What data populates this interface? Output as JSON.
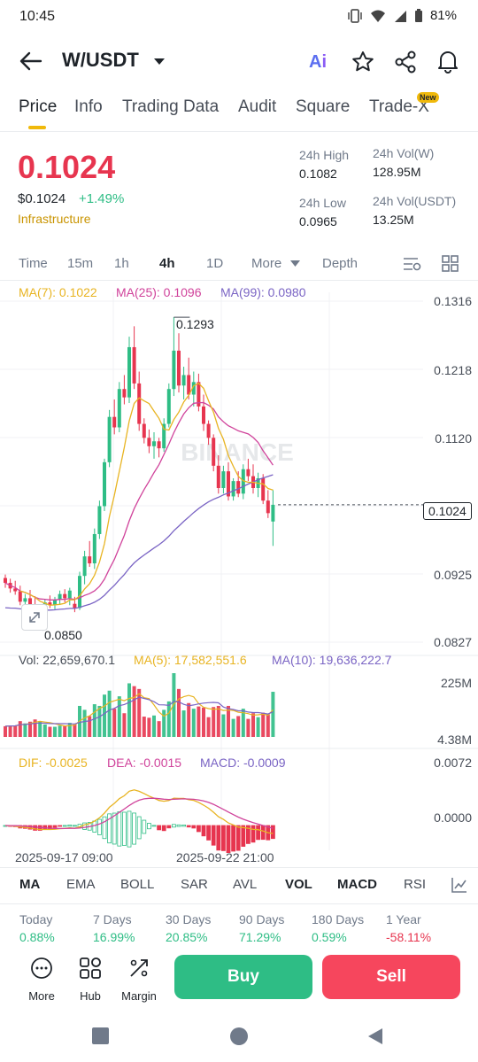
{
  "status_bar": {
    "time": "10:45",
    "battery": "81%"
  },
  "header": {
    "pair": "W/USDT"
  },
  "tabs": [
    {
      "label": "Price",
      "active": true
    },
    {
      "label": "Info"
    },
    {
      "label": "Trading Data"
    },
    {
      "label": "Audit"
    },
    {
      "label": "Square"
    },
    {
      "label": "Trade-X",
      "badge": "New"
    }
  ],
  "ticker": {
    "last_price": "0.1024",
    "usd_price": "$0.1024",
    "change": "+1.49%",
    "category": "Infrastructure",
    "high_label": "24h High",
    "high_value": "0.1082",
    "vol_w_label": "24h Vol(W)",
    "vol_w_value": "128.95M",
    "low_label": "24h Low",
    "low_value": "0.0965",
    "vol_usdt_label": "24h Vol(USDT)",
    "vol_usdt_value": "13.25M"
  },
  "timeframes": [
    {
      "label": "Time"
    },
    {
      "label": "15m"
    },
    {
      "label": "1h"
    },
    {
      "label": "4h",
      "active": true
    },
    {
      "label": "1D"
    },
    {
      "label": "More"
    },
    {
      "label": "Depth"
    }
  ],
  "ma_legend": {
    "ma7": "MA(7): 0.1022",
    "ma25": "MA(25): 0.1096",
    "ma99": "MA(99): 0.0980"
  },
  "price_axis": [
    "0.1316",
    "0.1218",
    "0.1120",
    "0.1022",
    "0.0925",
    "0.0827"
  ],
  "current_price_tag": "0.1024",
  "high_marker": "0.1293",
  "low_marker": "0.0850",
  "watermark": "BINANCE",
  "volume_legend": {
    "vol": "Vol: 22,659,670.1",
    "ma5": "MA(5): 17,582,551.6",
    "ma10": "MA(10): 19,636,222.7"
  },
  "volume_axis": [
    "225M",
    "4.38M"
  ],
  "macd_legend": {
    "dif": "DIF: -0.0025",
    "dea": "DEA: -0.0015",
    "macd": "MACD: -0.0009"
  },
  "macd_axis": [
    "0.0072",
    "0.0000"
  ],
  "time_axis": [
    "2025-09-17 09:00",
    "2025-09-22 21:00"
  ],
  "indicator_tabs": [
    {
      "label": "MA",
      "bold": true
    },
    {
      "label": "EMA"
    },
    {
      "label": "BOLL"
    },
    {
      "label": "SAR"
    },
    {
      "label": "AVL"
    },
    {
      "label": "VOL",
      "bold": true
    },
    {
      "label": "MACD",
      "bold": true
    },
    {
      "label": "RSI"
    }
  ],
  "performance": [
    {
      "label": "Today",
      "value": "0.88%"
    },
    {
      "label": "7 Days",
      "value": "16.99%"
    },
    {
      "label": "30 Days",
      "value": "20.85%"
    },
    {
      "label": "90 Days",
      "value": "71.29%"
    },
    {
      "label": "180 Days",
      "value": "0.59%"
    },
    {
      "label": "1 Year",
      "value": "-58.11%"
    }
  ],
  "bottom_tools": {
    "more": "More",
    "hub": "Hub",
    "margin": "Margin"
  },
  "actions": {
    "buy": "Buy",
    "sell": "Sell"
  },
  "colors": {
    "up": "#2ebd85",
    "down": "#e7354f",
    "brand": "#f0b90b",
    "ma7": "#e8b422",
    "ma25": "#d0439b",
    "ma99": "#7a64c4"
  },
  "chart_data": {
    "type": "candlestick",
    "interval": "4h",
    "y_axis_range": [
      0.0827,
      0.1316
    ],
    "candles_ohlc": [
      [
        0.0919,
        0.0924,
        0.0905,
        0.0912
      ],
      [
        0.0912,
        0.0918,
        0.0898,
        0.0904
      ],
      [
        0.0904,
        0.0915,
        0.0895,
        0.09
      ],
      [
        0.09,
        0.0908,
        0.088,
        0.0885
      ],
      [
        0.0885,
        0.0896,
        0.0872,
        0.089
      ],
      [
        0.089,
        0.0902,
        0.0875,
        0.088
      ],
      [
        0.088,
        0.0893,
        0.0862,
        0.0868
      ],
      [
        0.0868,
        0.0878,
        0.085,
        0.0873
      ],
      [
        0.0873,
        0.0888,
        0.0866,
        0.0884
      ],
      [
        0.0884,
        0.0894,
        0.0876,
        0.088
      ],
      [
        0.088,
        0.0892,
        0.0874,
        0.0888
      ],
      [
        0.0888,
        0.0901,
        0.0881,
        0.0896
      ],
      [
        0.0896,
        0.0903,
        0.0884,
        0.089
      ],
      [
        0.089,
        0.0905,
        0.088,
        0.0901
      ],
      [
        0.0882,
        0.0892,
        0.087,
        0.0876
      ],
      [
        0.0876,
        0.0928,
        0.0873,
        0.0922
      ],
      [
        0.0922,
        0.0958,
        0.091,
        0.095
      ],
      [
        0.095,
        0.0972,
        0.0935,
        0.094
      ],
      [
        0.094,
        0.099,
        0.0932,
        0.0982
      ],
      [
        0.0982,
        0.103,
        0.0975,
        0.1022
      ],
      [
        0.1022,
        0.109,
        0.1015,
        0.1085
      ],
      [
        0.1085,
        0.116,
        0.1078,
        0.115
      ],
      [
        0.115,
        0.1175,
        0.1125,
        0.1135
      ],
      [
        0.1135,
        0.12,
        0.1128,
        0.119
      ],
      [
        0.119,
        0.121,
        0.1168,
        0.1178
      ],
      [
        0.1178,
        0.1265,
        0.117,
        0.125
      ],
      [
        0.125,
        0.128,
        0.119,
        0.1198
      ],
      [
        0.1198,
        0.1215,
        0.113,
        0.114
      ],
      [
        0.114,
        0.1148,
        0.1112,
        0.112
      ],
      [
        0.112,
        0.1132,
        0.1098,
        0.1108
      ],
      [
        0.1108,
        0.1128,
        0.109,
        0.1115
      ],
      [
        0.1115,
        0.112,
        0.1092,
        0.1105
      ],
      [
        0.1105,
        0.1148,
        0.11,
        0.114
      ],
      [
        0.114,
        0.1198,
        0.1135,
        0.119
      ],
      [
        0.119,
        0.1293,
        0.118,
        0.1245
      ],
      [
        0.1245,
        0.127,
        0.1185,
        0.1195
      ],
      [
        0.1195,
        0.1222,
        0.1175,
        0.121
      ],
      [
        0.121,
        0.1235,
        0.1175,
        0.1182
      ],
      [
        0.1182,
        0.1215,
        0.1165,
        0.12
      ],
      [
        0.12,
        0.1212,
        0.1158,
        0.1165
      ],
      [
        0.1165,
        0.1182,
        0.113,
        0.114
      ],
      [
        0.114,
        0.1145,
        0.111,
        0.112
      ],
      [
        0.112,
        0.1125,
        0.1072,
        0.108
      ],
      [
        0.108,
        0.1095,
        0.104,
        0.1048
      ],
      [
        0.1048,
        0.108,
        0.104,
        0.1072
      ],
      [
        0.1072,
        0.1085,
        0.103,
        0.1036
      ],
      [
        0.1036,
        0.1062,
        0.103,
        0.1058
      ],
      [
        0.1058,
        0.1072,
        0.1035,
        0.104
      ],
      [
        0.104,
        0.1082,
        0.1032,
        0.1075
      ],
      [
        0.1075,
        0.109,
        0.1058,
        0.1065
      ],
      [
        0.1065,
        0.1082,
        0.104,
        0.1048
      ],
      [
        0.1048,
        0.107,
        0.1035,
        0.1062
      ],
      [
        0.1062,
        0.1068,
        0.1025,
        0.103
      ],
      [
        0.103,
        0.1045,
        0.1005,
        0.1012
      ],
      [
        0.1,
        0.1045,
        0.0965,
        0.1024
      ]
    ]
  }
}
